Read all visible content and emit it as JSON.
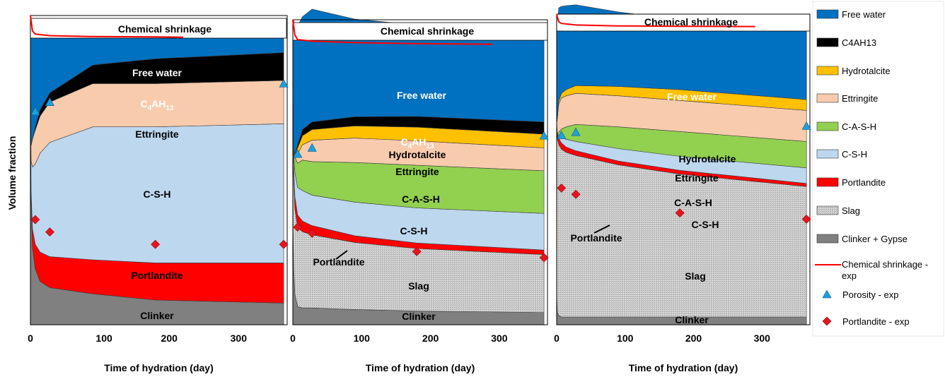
{
  "chart_data": {
    "type": "area",
    "ylabel": "Volume fraction",
    "legend": {
      "placement": "right",
      "items": [
        {
          "label": "Free water",
          "kind": "fill",
          "color": "#0070C0"
        },
        {
          "label": "C4AH13",
          "kind": "fill",
          "color": "#000000"
        },
        {
          "label": "Hydrotalcite",
          "kind": "fill",
          "color": "#FFC000"
        },
        {
          "label": "Ettringite",
          "kind": "fill",
          "color": "#F8CBAD"
        },
        {
          "label": "C-A-S-H",
          "kind": "fill",
          "color": "#92D050"
        },
        {
          "label": "C-S-H",
          "kind": "fill",
          "color": "#BDD7EE"
        },
        {
          "label": "Portlandite",
          "kind": "fill",
          "color": "#FF0000"
        },
        {
          "label": "Slag",
          "kind": "pattern",
          "color": "#C8C8C8"
        },
        {
          "label": "Clinker + Gypse",
          "kind": "fill",
          "color": "#808080"
        },
        {
          "label": "Chemical shrinkage - exp",
          "kind": "line",
          "color": "#FF0000"
        },
        {
          "label": "Porosity - exp",
          "kind": "triangle",
          "color": "#1EA0DC"
        },
        {
          "label": "Portlandite - exp",
          "kind": "diamond",
          "color": "#E8141C"
        }
      ]
    },
    "panels": [
      {
        "xlabel": "Time of hydration (day)",
        "xlim": [
          0,
          370
        ],
        "ylim": [
          0,
          1
        ],
        "xticks": [
          0,
          100,
          200,
          300
        ],
        "x": [
          0,
          1,
          3,
          7,
          14,
          28,
          90,
          180,
          365
        ],
        "series": [
          {
            "name": "Clinker",
            "color": "#808080",
            "values": [
              0.8,
              0.4,
              0.25,
              0.18,
              0.14,
              0.12,
              0.1,
              0.08,
              0.07
            ]
          },
          {
            "name": "Portlandite",
            "color": "#FF0000",
            "values": [
              0.0,
              0.03,
              0.06,
              0.08,
              0.095,
              0.1,
              0.11,
              0.12,
              0.13
            ]
          },
          {
            "name": "C-S-H",
            "color": "#BDD7EE",
            "values": [
              0.0,
              0.1,
              0.2,
              0.26,
              0.32,
              0.37,
              0.43,
              0.44,
              0.45
            ]
          },
          {
            "name": "Ettringite",
            "color": "#F8CBAD",
            "values": [
              0.0,
              0.05,
              0.09,
              0.11,
              0.12,
              0.13,
              0.14,
              0.14,
              0.14
            ]
          },
          {
            "name": "C4AH13",
            "color": "#000000",
            "values": [
              0.0,
              0.0,
              0.0,
              0.01,
              0.02,
              0.03,
              0.06,
              0.08,
              0.09
            ]
          },
          {
            "name": "Free water",
            "color": "#0070C0",
            "values": [
              0.2,
              0.41,
              0.38,
              0.31,
              0.26,
              0.2,
              0.11,
              0.08,
              0.07
            ]
          }
        ],
        "shrinkage_exp": {
          "x": [
            0,
            3,
            7,
            28,
            90,
            180,
            220
          ],
          "values": [
            1.0,
            0.95,
            0.94,
            0.935,
            0.932,
            0.931,
            0.93
          ]
        },
        "porosity_exp": {
          "x": [
            7,
            28,
            365
          ],
          "values": [
            0.69,
            0.72,
            0.78
          ]
        },
        "portlandite_exp": {
          "x": [
            7,
            28,
            180,
            365
          ],
          "values": [
            0.34,
            0.3,
            0.26,
            0.26
          ]
        },
        "labels": {
          "shrinkage": "Chemical shrinkage",
          "free_water": "Free water",
          "c4ah13_main": "C",
          "c4ah13_sub1": "4",
          "c4ah13_mid": "AH",
          "c4ah13_sub2": "13",
          "ettringite": "Ettringite",
          "csh": "C-S-H",
          "portlandite": "Portlandite",
          "clinker": "Clinker"
        }
      },
      {
        "xlabel": "Time of hydration (day)",
        "xlim": [
          0,
          370
        ],
        "ylim": [
          0,
          1
        ],
        "xticks": [
          0,
          100,
          200,
          300
        ],
        "x": [
          0,
          1,
          3,
          7,
          14,
          28,
          90,
          180,
          365
        ],
        "series": [
          {
            "name": "Clinker",
            "color": "#808080",
            "values": [
              0.35,
              0.2,
              0.1,
              0.06,
              0.055,
              0.055,
              0.05,
              0.045,
              0.04
            ]
          },
          {
            "name": "Slag",
            "color": "#C8C8C8",
            "values": [
              0.45,
              0.3,
              0.28,
              0.26,
              0.25,
              0.24,
              0.22,
              0.205,
              0.19
            ]
          },
          {
            "name": "Portlandite",
            "color": "#FF0000",
            "values": [
              0.0,
              0.02,
              0.04,
              0.04,
              0.035,
              0.03,
              0.022,
              0.018,
              0.015
            ]
          },
          {
            "name": "C-S-H",
            "color": "#BDD7EE",
            "values": [
              0.0,
              0.05,
              0.08,
              0.09,
              0.1,
              0.1,
              0.11,
              0.115,
              0.12
            ]
          },
          {
            "name": "C-A-S-H",
            "color": "#92D050",
            "values": [
              0.0,
              0.0,
              0.05,
              0.08,
              0.1,
              0.11,
              0.13,
              0.14,
              0.14
            ]
          },
          {
            "name": "Ettringite",
            "color": "#F8CBAD",
            "values": [
              0.0,
              0.0,
              0.01,
              0.03,
              0.05,
              0.07,
              0.08,
              0.08,
              0.075
            ]
          },
          {
            "name": "Hydrotalcite",
            "color": "#FFC000",
            "values": [
              0.0,
              0.0,
              0.0,
              0.02,
              0.03,
              0.035,
              0.04,
              0.045,
              0.045
            ]
          },
          {
            "name": "C4AH13",
            "color": "#000000",
            "values": [
              0.0,
              0.0,
              0.0,
              0.01,
              0.02,
              0.025,
              0.03,
              0.035,
              0.04
            ]
          },
          {
            "name": "Free water",
            "color": "#0070C0",
            "values": [
              0.2,
              0.43,
              0.42,
              0.39,
              0.37,
              0.37,
              0.32,
              0.3,
              0.31
            ]
          }
        ],
        "shrinkage_exp": {
          "x": [
            0,
            3,
            7,
            28,
            90,
            180,
            290
          ],
          "values": [
            1.0,
            0.95,
            0.935,
            0.93,
            0.925,
            0.922,
            0.92
          ]
        },
        "porosity_exp": {
          "x": [
            7,
            28,
            365
          ],
          "values": [
            0.56,
            0.58,
            0.62
          ]
        },
        "portlandite_exp": {
          "x": [
            7,
            28,
            180,
            365
          ],
          "values": [
            0.32,
            0.3,
            0.24,
            0.22
          ]
        },
        "labels": {
          "shrinkage": "Chemical shrinkage",
          "free_water": "Free water",
          "c4ah13_main": "C",
          "c4ah13_sub1": "4",
          "c4ah13_mid": "AH",
          "c4ah13_sub2": "13",
          "hydrotalcite": "Hydrotalcite",
          "ettringite": "Ettringite",
          "cash": "C-A-S-H",
          "csh": "C-S-H",
          "portlandite": "Portlandite",
          "slag": "Slag",
          "clinker": "Clinker"
        }
      },
      {
        "xlabel": "Time of hydration (day)",
        "xlim": [
          0,
          370
        ],
        "ylim": [
          0,
          1
        ],
        "xticks": [
          0,
          100,
          200,
          300
        ],
        "x": [
          0,
          1,
          3,
          7,
          14,
          28,
          90,
          180,
          365
        ],
        "series": [
          {
            "name": "Clinker",
            "color": "#808080",
            "values": [
              0.1,
              0.04,
              0.03,
              0.025,
              0.025,
              0.025,
              0.025,
              0.025,
              0.025
            ]
          },
          {
            "name": "Slag",
            "color": "#C8C8C8",
            "values": [
              0.55,
              0.56,
              0.55,
              0.54,
              0.53,
              0.52,
              0.49,
              0.46,
              0.42
            ]
          },
          {
            "name": "Portlandite",
            "color": "#FF0000",
            "values": [
              0.0,
              0.015,
              0.02,
              0.02,
              0.017,
              0.015,
              0.012,
              0.012,
              0.01
            ]
          },
          {
            "name": "C-S-H",
            "color": "#BDD7EE",
            "values": [
              0.0,
              0.0,
              0.01,
              0.02,
              0.025,
              0.03,
              0.04,
              0.045,
              0.05
            ]
          },
          {
            "name": "C-A-S-H",
            "color": "#92D050",
            "values": [
              0.0,
              0.0,
              0.01,
              0.025,
              0.04,
              0.055,
              0.07,
              0.08,
              0.085
            ]
          },
          {
            "name": "Ettringite",
            "color": "#F8CBAD",
            "values": [
              0.0,
              0.05,
              0.09,
              0.1,
              0.1,
              0.1,
              0.1,
              0.1,
              0.1
            ]
          },
          {
            "name": "Hydrotalcite",
            "color": "#FFC000",
            "values": [
              0.0,
              0.0,
              0.01,
              0.015,
              0.02,
              0.025,
              0.03,
              0.035,
              0.035
            ]
          },
          {
            "name": "Free water",
            "color": "#0070C0",
            "values": [
              0.35,
              0.305,
              0.3,
              0.28,
              0.27,
              0.26,
              0.24,
              0.225,
              0.225
            ]
          }
        ],
        "shrinkage_exp": {
          "x": [
            0,
            3,
            7,
            28,
            90,
            180,
            290
          ],
          "values": [
            1.0,
            0.975,
            0.97,
            0.965,
            0.962,
            0.961,
            0.96
          ]
        },
        "porosity_exp": {
          "x": [
            7,
            28,
            365
          ],
          "values": [
            0.61,
            0.62,
            0.64
          ]
        },
        "portlandite_exp": {
          "x": [
            7,
            28,
            180,
            365
          ],
          "values": [
            0.44,
            0.42,
            0.36,
            0.34
          ]
        },
        "labels": {
          "shrinkage": "Chemical shrinkage",
          "free_water": "Free water",
          "hydrotalcite": "Hydrotalcite",
          "ettringite": "Ettringite",
          "cash": "C-A-S-H",
          "csh": "C-S-H",
          "portlandite": "Portlandite",
          "slag": "Slag",
          "clinker": "Clinker"
        }
      }
    ]
  }
}
